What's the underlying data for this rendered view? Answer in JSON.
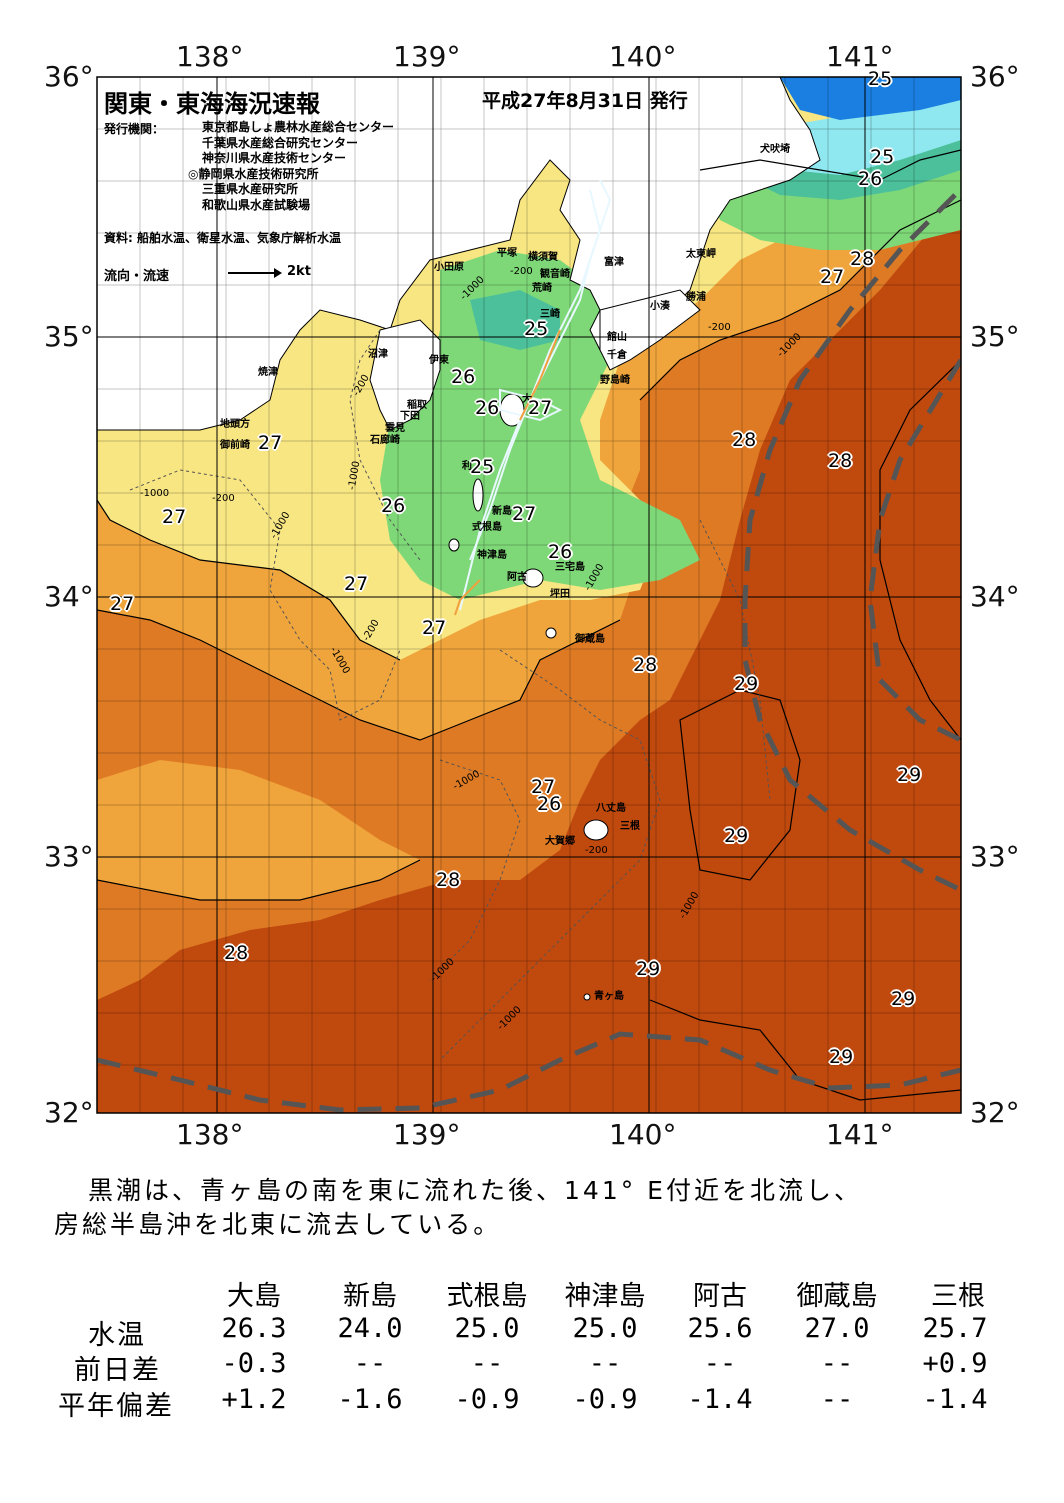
{
  "header": {
    "title": "関東・東海海況速報",
    "date": "平成27年8月31日 発行",
    "org_label": "発行機関：",
    "organizations": [
      "東京都島しょ農林水産総合センター",
      "千葉県水産総合研究センター",
      "神奈川県水産技術センター",
      "◎静岡県水産技術研究所",
      "三重県水産研究所",
      "和歌山県水産試験場"
    ],
    "source": "資料: 船舶水温、衛星水温、気象庁解析水温",
    "legend_label": "流向・流速",
    "legend_unit": "2kt"
  },
  "axes": {
    "longitudes": [
      "138°",
      "139°",
      "140°",
      "141°"
    ],
    "latitudes": [
      "36°",
      "35°",
      "34°",
      "33°",
      "32°"
    ]
  },
  "places": {
    "inubosaki": "犬吠埼",
    "taitomisaki": "太東岬",
    "katsuura": "勝浦",
    "kominato": "小湊",
    "futtsu": "富津",
    "tateyama": "館山",
    "chikura": "千倉",
    "nojimazaki": "野島崎",
    "hiratsuka": "平塚",
    "yokosuka": "横須賀",
    "kannonzaki": "観音崎",
    "arasaki": "荒崎",
    "misaki": "三崎",
    "odawara": "小田原",
    "numazu": "沼津",
    "ito": "伊東",
    "inatori": "稲取",
    "shimoda": "下田",
    "kumomi": "雲見",
    "irozaki": "石廊崎",
    "yaizu": "焼津",
    "jitokata": "地頭方",
    "omaezaki": "御前崎",
    "oshima_map": "大",
    "toshima": "利",
    "niijima_map": "新島",
    "shikinejima_map": "式根島",
    "kozushima_map": "神津島",
    "ako_map": "阿古",
    "miyakejima": "三宅島",
    "tsubota": "坪田",
    "mikurajima": "御蔵島",
    "hachijojima": "八丈島",
    "mitsune": "三根",
    "okago": "大賀郷",
    "aogashima": "青ヶ島"
  },
  "contours": {
    "d200": "-200",
    "d1000": "-1000"
  },
  "temperature_labels": [
    "25",
    "25",
    "26",
    "27",
    "28",
    "25",
    "26",
    "26",
    "25",
    "27",
    "27",
    "26",
    "27",
    "27",
    "27",
    "26",
    "27",
    "28",
    "28",
    "29",
    "29",
    "27",
    "26",
    "29",
    "28",
    "28",
    "29",
    "29",
    "29",
    "27"
  ],
  "comment": {
    "line1": "黒潮は、青ヶ島の南を東に流れた後、141° E付近を北流し、",
    "line2": "房総半島沖を北東に流去している。"
  },
  "table": {
    "stations": [
      "大島",
      "新島",
      "式根島",
      "神津島",
      "阿古",
      "御蔵島",
      "三根"
    ],
    "rows": [
      {
        "label": "水温",
        "values": [
          "26.3",
          "24.0",
          "25.0",
          "25.0",
          "25.6",
          "27.0",
          "25.7"
        ]
      },
      {
        "label": "前日差",
        "values": [
          "-0.3",
          "--",
          "--",
          "--",
          "--",
          "--",
          "+0.9"
        ]
      },
      {
        "label": "平年偏差",
        "values": [
          "+1.2",
          "-1.6",
          "-0.9",
          "-0.9",
          "-1.4",
          "--",
          "-1.4"
        ]
      }
    ]
  },
  "colors": {
    "t29": "#c0490e",
    "t28": "#de7a24",
    "t27": "#f0a53c",
    "t26": "#f8e682",
    "t25": "#7fd878",
    "t24": "#4cc09a",
    "t23": "#8fe8f0",
    "t22": "#1a7fe0",
    "land": "#ffffff",
    "kuroshio": "#555555"
  }
}
